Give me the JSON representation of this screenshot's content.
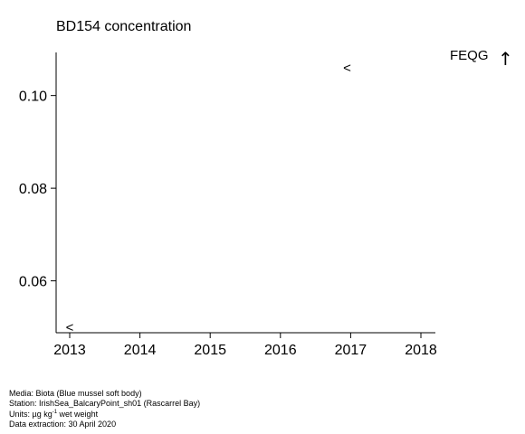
{
  "chart_data": {
    "type": "scatter",
    "title": "BD154 concentration",
    "xlabel": "",
    "ylabel": "",
    "x_ticks": [
      "2013",
      "2014",
      "2015",
      "2016",
      "2017",
      "2018"
    ],
    "y_ticks": [
      "0.06",
      "0.08",
      "0.10"
    ],
    "xlim": [
      2012.95,
      2018.2
    ],
    "ylim": [
      0.0488,
      0.1093
    ],
    "series": [
      {
        "marker": "<",
        "points": [
          {
            "x": 2013.0,
            "y": 0.05
          },
          {
            "x": 2016.95,
            "y": 0.106
          }
        ]
      }
    ],
    "annotation": {
      "text": "FEQG",
      "arrow": "↑"
    },
    "grid": false
  },
  "footer": {
    "media": "Media: Biota (Blue mussel soft body)",
    "station": "Station: IrishSea_BalcaryPoint_sh01 (Rascarrel Bay)",
    "units_prefix": "Units:  µg kg",
    "units_exp": "-1",
    "units_suffix": " wet weight",
    "extraction": "Data extraction: 30 April 2020"
  }
}
